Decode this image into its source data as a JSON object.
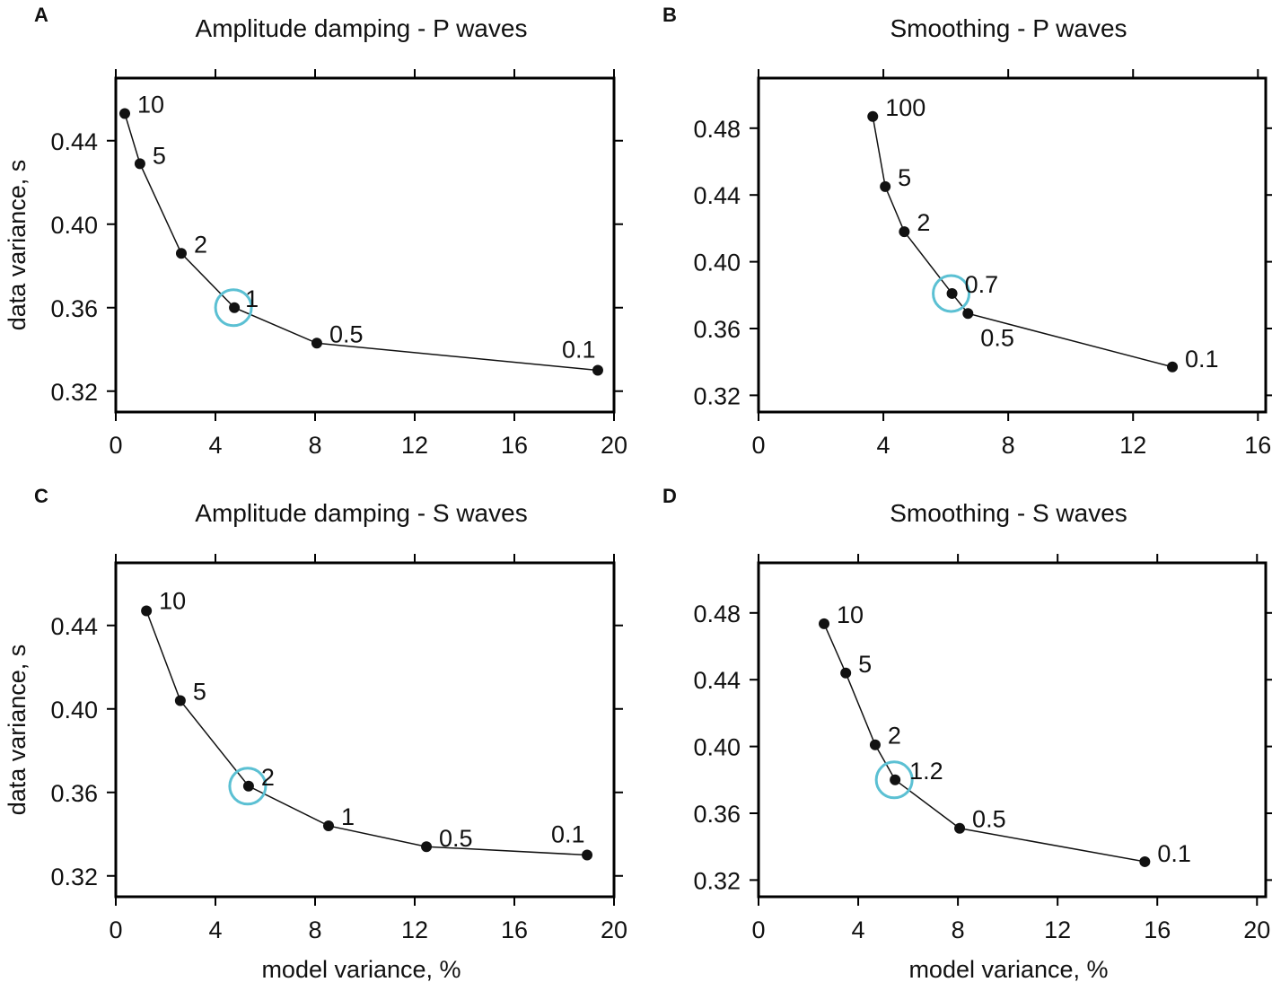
{
  "chart_data": [
    {
      "panel": "A",
      "type": "line",
      "title": "Amplitude damping - P waves",
      "xlabel": "",
      "ylabel": "data variance, s",
      "xlim": [
        0,
        20
      ],
      "ylim": [
        0.31,
        0.47
      ],
      "xticks": [
        0,
        4,
        8,
        12,
        16,
        20
      ],
      "yticks": [
        0.32,
        0.36,
        0.4,
        0.44
      ],
      "xtick_labels": [
        "0",
        "4",
        "8",
        "12",
        "16",
        "20"
      ],
      "ytick_labels": [
        "0.32",
        "0.36",
        "0.40",
        "0.44"
      ],
      "points": [
        {
          "label": "10",
          "x": 0.36,
          "y": 0.453
        },
        {
          "label": "5",
          "x": 0.97,
          "y": 0.429
        },
        {
          "label": "2",
          "x": 2.63,
          "y": 0.386
        },
        {
          "label": "1",
          "x": 4.76,
          "y": 0.36
        },
        {
          "label": "0.5",
          "x": 8.07,
          "y": 0.343
        },
        {
          "label": "0.1",
          "x": 19.35,
          "y": 0.33
        }
      ],
      "highlighted": "1",
      "grid": false
    },
    {
      "panel": "B",
      "type": "line",
      "title": "Smoothing - P waves",
      "xlabel": "",
      "ylabel": "",
      "xlim": [
        0,
        16.25
      ],
      "ylim": [
        0.31,
        0.51
      ],
      "xticks": [
        0,
        4,
        8,
        12,
        16
      ],
      "yticks": [
        0.32,
        0.36,
        0.4,
        0.44,
        0.48
      ],
      "xtick_labels": [
        "0",
        "4",
        "8",
        "12",
        "16"
      ],
      "ytick_labels": [
        "0.32",
        "0.36",
        "0.40",
        "0.44",
        "0.48"
      ],
      "points": [
        {
          "label": "100",
          "x": 3.66,
          "y": 0.487
        },
        {
          "label": "5",
          "x": 4.06,
          "y": 0.445
        },
        {
          "label": "2",
          "x": 4.67,
          "y": 0.418
        },
        {
          "label": "0.7",
          "x": 6.2,
          "y": 0.381
        },
        {
          "label": "0.5",
          "x": 6.71,
          "y": 0.369
        },
        {
          "label": "0.1",
          "x": 13.26,
          "y": 0.337
        }
      ],
      "highlighted": "0.7",
      "grid": false
    },
    {
      "panel": "C",
      "type": "line",
      "title": "Amplitude damping - S waves",
      "xlabel": "model variance, %",
      "ylabel": "data variance, s",
      "xlim": [
        0,
        20
      ],
      "ylim": [
        0.31,
        0.47
      ],
      "xticks": [
        0,
        4,
        8,
        12,
        16,
        20
      ],
      "yticks": [
        0.32,
        0.36,
        0.4,
        0.44
      ],
      "xtick_labels": [
        "0",
        "4",
        "8",
        "12",
        "16",
        "20"
      ],
      "ytick_labels": [
        "0.32",
        "0.36",
        "0.40",
        "0.44"
      ],
      "points": [
        {
          "label": "10",
          "x": 1.23,
          "y": 0.447
        },
        {
          "label": "5",
          "x": 2.59,
          "y": 0.404
        },
        {
          "label": "2",
          "x": 5.33,
          "y": 0.363
        },
        {
          "label": "1",
          "x": 8.54,
          "y": 0.344
        },
        {
          "label": "0.5",
          "x": 12.47,
          "y": 0.334
        },
        {
          "label": "0.1",
          "x": 18.92,
          "y": 0.33
        }
      ],
      "highlighted": "2",
      "grid": false
    },
    {
      "panel": "D",
      "type": "line",
      "title": "Smoothing - S waves",
      "xlabel": "model variance, %",
      "ylabel": "",
      "xlim": [
        0,
        20.35
      ],
      "ylim": [
        0.31,
        0.51
      ],
      "xticks": [
        0,
        4,
        8,
        12,
        16,
        20
      ],
      "yticks": [
        0.32,
        0.36,
        0.4,
        0.44,
        0.48
      ],
      "xtick_labels": [
        "0",
        "4",
        "8",
        "12",
        "16",
        "20"
      ],
      "ytick_labels": [
        "0.32",
        "0.36",
        "0.40",
        "0.44",
        "0.48"
      ],
      "points": [
        {
          "label": "10",
          "x": 2.63,
          "y": 0.4735
        },
        {
          "label": "5",
          "x": 3.5,
          "y": 0.444
        },
        {
          "label": "2",
          "x": 4.68,
          "y": 0.401
        },
        {
          "label": "1.2",
          "x": 5.48,
          "y": 0.38
        },
        {
          "label": "0.5",
          "x": 8.07,
          "y": 0.351
        },
        {
          "label": "0.1",
          "x": 15.5,
          "y": 0.331
        }
      ],
      "highlighted": "1.2",
      "grid": false
    }
  ],
  "colors": {
    "line": "#111111",
    "highlight": "#5bc0d3"
  }
}
